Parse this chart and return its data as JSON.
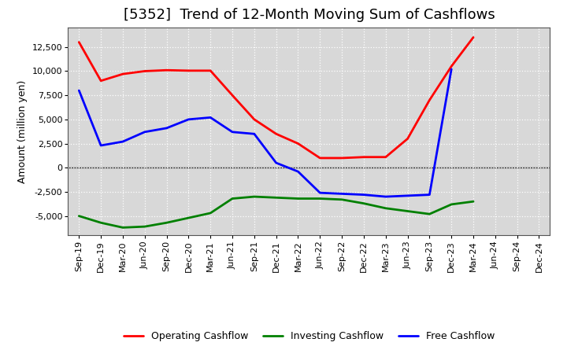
{
  "title": "[5352]  Trend of 12-Month Moving Sum of Cashflows",
  "ylabel": "Amount (million yen)",
  "x_labels": [
    "Sep-19",
    "Dec-19",
    "Mar-20",
    "Jun-20",
    "Sep-20",
    "Dec-20",
    "Mar-21",
    "Jun-21",
    "Sep-21",
    "Dec-21",
    "Mar-22",
    "Jun-22",
    "Sep-22",
    "Dec-22",
    "Mar-23",
    "Jun-23",
    "Sep-23",
    "Dec-23",
    "Mar-24",
    "Jun-24",
    "Sep-24",
    "Dec-24"
  ],
  "operating": [
    13000,
    9000,
    9700,
    10000,
    10100,
    10050,
    10050,
    7500,
    5000,
    3500,
    2500,
    1000,
    1000,
    1100,
    1100,
    3000,
    7000,
    10500,
    13500,
    null,
    null,
    null
  ],
  "investing": [
    -5000,
    -5700,
    -6200,
    -6100,
    -5700,
    -5200,
    -4700,
    -3200,
    -3000,
    -3100,
    -3200,
    -3200,
    -3300,
    -3700,
    -4200,
    -4500,
    -4800,
    -3800,
    -3500,
    null,
    null,
    null
  ],
  "free": [
    8000,
    2300,
    2700,
    3700,
    4100,
    5000,
    5200,
    3700,
    3500,
    500,
    -400,
    -2600,
    -2700,
    -2800,
    -3000,
    -2900,
    -2800,
    10200,
    null,
    null,
    null,
    null
  ],
  "operating_color": "#ff0000",
  "investing_color": "#008000",
  "free_color": "#0000ff",
  "bg_color": "#ffffff",
  "plot_bg_color": "#d8d8d8",
  "grid_color": "#ffffff",
  "ylim": [
    -7000,
    14500
  ],
  "yticks": [
    -5000,
    -2500,
    0,
    2500,
    5000,
    7500,
    10000,
    12500
  ],
  "title_fontsize": 13,
  "axis_label_fontsize": 9,
  "tick_fontsize": 8,
  "legend_fontsize": 9,
  "linewidth": 2.0
}
